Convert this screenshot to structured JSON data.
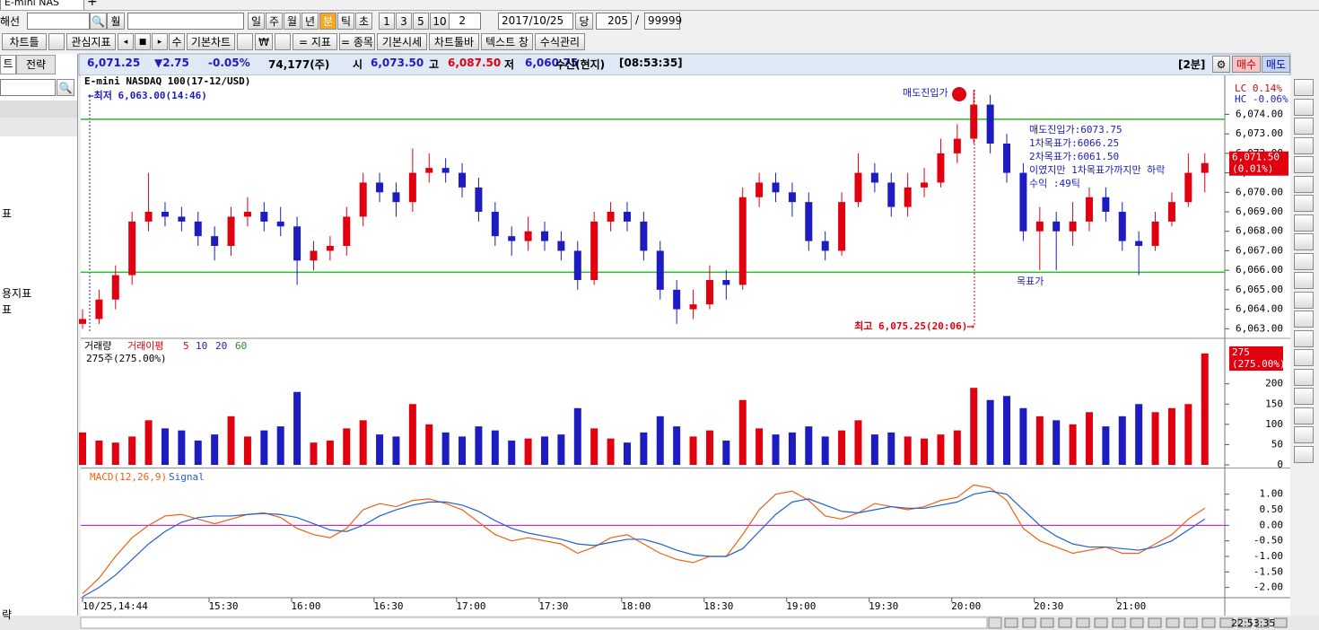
{
  "ui": {
    "tab": "E-mini NAS",
    "toolbar1": {
      "market": "해선",
      "periods": [
        "일",
        "주",
        "월",
        "년",
        "분",
        "틱",
        "초"
      ],
      "numbers": [
        "1",
        "3",
        "5",
        "10"
      ],
      "interval": "2",
      "date": "2017/10/25",
      "current": "당",
      "count": "205",
      "slash": "/",
      "max": "99999"
    },
    "toolbar2": [
      "차트틀",
      "관심지표",
      "수",
      "기본차트",
      "₩",
      "= 지표",
      "= 종목",
      "기본시세",
      "차트툴바",
      "텍스트 창",
      "수식관리"
    ],
    "left": {
      "tabs": [
        "트",
        "전략"
      ],
      "items": [
        "표",
        "용지표",
        "표",
        "략"
      ]
    },
    "info": {
      "last": "6,071.25",
      "change": "▼2.75",
      "pct": "-0.05%",
      "volume": "74,177(주)",
      "open_label": "시",
      "open": "6,073.50",
      "high_label": "고",
      "high": "6,087.50",
      "low_label": "저",
      "low": "6,060.75",
      "source": "수신(현지)",
      "time": "[08:53:35]",
      "period": "[2분]",
      "buy": "매수",
      "sell": "매도"
    },
    "clock": "22:53:35"
  },
  "chart_data": [
    {
      "type": "candlestick",
      "title": "E-mini NASDAQ 100(17-12/USD)",
      "low_note": "←최저 6,063.00(14:46)",
      "high_note": "최고 6,075.25(20:06)⟶",
      "entry_label": "매도진입가",
      "target_label": "목표가",
      "notes": [
        "매도진입가:6073.75",
        "1차목표가:6066.25",
        "2차목표가:6061.50",
        "이였지만 1차목표가까지만 하락",
        "수익 :49틱"
      ],
      "lc": "LC  0.14%",
      "hc": "HC -0.06%",
      "price_label": "6,071.50",
      "price_pct": "(0.01%)",
      "up_color": "#e00010",
      "down_color": "#1c1cc0",
      "level_color": "#2db82d",
      "levels": [
        6073.75,
        6065.9
      ],
      "xlim": [
        0,
        206
      ],
      "ylim": [
        6062.6,
        6076.0
      ],
      "yticks": [
        {
          "value": 6063,
          "label": "6,063.00"
        },
        {
          "value": 6064,
          "label": "6,064.00"
        },
        {
          "value": 6065,
          "label": "6,065.00"
        },
        {
          "value": 6066,
          "label": "6,066.00"
        },
        {
          "value": 6067,
          "label": "6,067.00"
        },
        {
          "value": 6068,
          "label": "6,068.00"
        },
        {
          "value": 6069,
          "label": "6,069.00"
        },
        {
          "value": 6070,
          "label": "6,070.00"
        },
        {
          "value": 6071,
          "label": "6,071.00"
        },
        {
          "value": 6072,
          "label": "6,072.00"
        },
        {
          "value": 6073,
          "label": "6,073.00"
        },
        {
          "value": 6074,
          "label": "6,074.00"
        }
      ],
      "x": [
        0,
        3,
        6,
        9,
        12,
        15,
        18,
        21,
        24,
        27,
        30,
        33,
        36,
        39,
        42,
        45,
        48,
        51,
        54,
        57,
        60,
        63,
        66,
        69,
        72,
        75,
        78,
        81,
        84,
        87,
        90,
        93,
        96,
        99,
        102,
        105,
        108,
        111,
        114,
        117,
        120,
        123,
        126,
        129,
        132,
        135,
        138,
        141,
        144,
        147,
        150,
        153,
        156,
        159,
        162,
        165,
        168,
        171,
        174,
        177,
        180,
        183,
        186,
        189,
        192,
        195,
        198,
        201,
        204
      ],
      "open": [
        6063.25,
        6063.5,
        6064.5,
        6065.75,
        6068.5,
        6069.0,
        6068.75,
        6068.5,
        6067.75,
        6067.25,
        6068.75,
        6069.0,
        6068.5,
        6068.25,
        6066.5,
        6067.0,
        6067.25,
        6068.75,
        6070.5,
        6070.0,
        6069.5,
        6071.0,
        6071.25,
        6071.0,
        6070.25,
        6069.0,
        6067.75,
        6067.5,
        6068.0,
        6067.5,
        6067.0,
        6065.5,
        6068.5,
        6069.0,
        6068.5,
        6067.0,
        6065.0,
        6064.0,
        6064.25,
        6065.5,
        6065.25,
        6069.75,
        6070.5,
        6070.0,
        6069.5,
        6067.5,
        6067.0,
        6069.5,
        6071.0,
        6070.5,
        6069.25,
        6070.25,
        6070.5,
        6072.0,
        6072.75,
        6074.5,
        6072.5,
        6071.0,
        6068.0,
        6068.5,
        6068.0,
        6068.5,
        6069.75,
        6069.0,
        6067.5,
        6067.25,
        6068.5,
        6069.5,
        6071.0
      ],
      "high": [
        6064.0,
        6065.0,
        6066.25,
        6069.0,
        6071.0,
        6069.5,
        6069.25,
        6069.0,
        6068.25,
        6069.25,
        6069.75,
        6069.5,
        6069.25,
        6068.75,
        6067.5,
        6067.75,
        6069.25,
        6071.0,
        6071.0,
        6070.5,
        6072.25,
        6072.0,
        6071.75,
        6071.5,
        6070.75,
        6069.5,
        6068.25,
        6068.75,
        6068.5,
        6068.0,
        6067.5,
        6069.0,
        6069.5,
        6069.5,
        6069.0,
        6067.5,
        6065.5,
        6065.0,
        6066.25,
        6066.0,
        6070.25,
        6071.0,
        6071.0,
        6070.5,
        6070.0,
        6068.0,
        6070.0,
        6072.0,
        6071.5,
        6071.0,
        6071.0,
        6071.25,
        6072.75,
        6073.5,
        6075.25,
        6075.0,
        6073.0,
        6071.5,
        6069.25,
        6069.0,
        6069.5,
        6070.25,
        6070.25,
        6069.5,
        6068.0,
        6069.0,
        6070.0,
        6072.0,
        6072.0
      ],
      "low": [
        6063.0,
        6063.25,
        6064.0,
        6065.25,
        6068.0,
        6068.25,
        6068.0,
        6067.25,
        6066.5,
        6066.75,
        6068.25,
        6068.0,
        6067.75,
        6065.25,
        6066.0,
        6066.5,
        6066.75,
        6068.25,
        6069.5,
        6068.75,
        6069.0,
        6070.5,
        6070.5,
        6069.75,
        6068.5,
        6067.25,
        6066.75,
        6067.0,
        6067.0,
        6066.5,
        6065.0,
        6065.25,
        6068.0,
        6068.0,
        6066.5,
        6064.5,
        6063.25,
        6063.5,
        6064.0,
        6064.5,
        6065.0,
        6069.25,
        6069.5,
        6068.75,
        6067.0,
        6066.5,
        6066.75,
        6069.25,
        6070.0,
        6068.75,
        6068.75,
        6069.75,
        6070.25,
        6071.5,
        6072.5,
        6072.0,
        6070.5,
        6067.5,
        6066.0,
        6066.0,
        6067.25,
        6068.0,
        6068.5,
        6067.0,
        6065.75,
        6067.0,
        6068.25,
        6069.25,
        6070.0
      ],
      "close": [
        6063.5,
        6064.5,
        6065.75,
        6068.5,
        6069.0,
        6068.75,
        6068.5,
        6067.75,
        6067.25,
        6068.75,
        6069.0,
        6068.5,
        6068.25,
        6066.5,
        6067.0,
        6067.25,
        6068.75,
        6070.5,
        6070.0,
        6069.5,
        6071.0,
        6071.25,
        6071.0,
        6070.25,
        6069.0,
        6067.75,
        6067.5,
        6068.0,
        6067.5,
        6067.0,
        6065.5,
        6068.5,
        6069.0,
        6068.5,
        6067.0,
        6065.0,
        6064.0,
        6064.25,
        6065.5,
        6065.25,
        6069.75,
        6070.5,
        6070.0,
        6069.5,
        6067.5,
        6067.0,
        6069.5,
        6071.0,
        6070.5,
        6069.25,
        6070.25,
        6070.5,
        6072.0,
        6072.75,
        6074.5,
        6072.5,
        6071.0,
        6068.0,
        6068.5,
        6068.0,
        6068.5,
        6069.75,
        6069.0,
        6067.5,
        6067.25,
        6068.5,
        6069.5,
        6071.0,
        6071.5
      ]
    },
    {
      "type": "bar",
      "legend": [
        "거래량",
        "거래이평",
        "5",
        "10",
        "20",
        "60"
      ],
      "legend_colors": [
        "#000000",
        "#e00010",
        "#e00010",
        "#1c1cc0",
        "#1c1cc0",
        "#2a8a2a"
      ],
      "subtitle": "275주(275.00%)",
      "last_label": "275",
      "last_pct": "(275.00%)",
      "ylim": [
        0,
        310
      ],
      "yticks": [
        0,
        50,
        100,
        150,
        200
      ],
      "values": [
        80,
        60,
        55,
        70,
        110,
        90,
        85,
        60,
        75,
        120,
        70,
        85,
        95,
        180,
        55,
        60,
        90,
        110,
        75,
        70,
        150,
        100,
        80,
        70,
        95,
        85,
        60,
        65,
        70,
        75,
        140,
        90,
        65,
        55,
        80,
        120,
        95,
        70,
        85,
        60,
        160,
        90,
        75,
        80,
        95,
        70,
        85,
        110,
        75,
        80,
        70,
        65,
        75,
        85,
        190,
        160,
        170,
        140,
        120,
        110,
        100,
        130,
        95,
        120,
        150,
        130,
        140,
        150,
        275
      ]
    },
    {
      "type": "line",
      "ylim": [
        -2.3,
        1.8
      ],
      "zero_color": "#d000d0",
      "hline": 0,
      "yticks": [
        {
          "value": 1,
          "label": "1.00"
        },
        {
          "value": 0.5,
          "label": "0.50"
        },
        {
          "value": 0,
          "label": "0.00"
        },
        {
          "value": -0.5,
          "label": "-0.50"
        },
        {
          "value": -1,
          "label": "-1.00"
        },
        {
          "value": -1.5,
          "label": "-1.50"
        },
        {
          "value": -2,
          "label": "-2.00"
        }
      ],
      "xticks": [
        {
          "value": 0,
          "label": "10/25,14:44"
        },
        {
          "value": 23,
          "label": "15:30"
        },
        {
          "value": 38,
          "label": "16:00"
        },
        {
          "value": 53,
          "label": "16:30"
        },
        {
          "value": 68,
          "label": "17:00"
        },
        {
          "value": 83,
          "label": "17:30"
        },
        {
          "value": 98,
          "label": "18:00"
        },
        {
          "value": 113,
          "label": "18:30"
        },
        {
          "value": 128,
          "label": "19:00"
        },
        {
          "value": 143,
          "label": "19:30"
        },
        {
          "value": 158,
          "label": "20:00"
        },
        {
          "value": 173,
          "label": "20:30"
        },
        {
          "value": 188,
          "label": "21:00"
        }
      ],
      "series": [
        {
          "name": "MACD(12,26,9)",
          "color": "#f06010",
          "values": [
            -2.2,
            -1.7,
            -1.0,
            -0.4,
            0.0,
            0.3,
            0.35,
            0.2,
            0.05,
            0.2,
            0.35,
            0.4,
            0.25,
            -0.1,
            -0.3,
            -0.4,
            -0.1,
            0.5,
            0.7,
            0.6,
            0.8,
            0.85,
            0.7,
            0.5,
            0.1,
            -0.3,
            -0.5,
            -0.4,
            -0.5,
            -0.6,
            -0.9,
            -0.7,
            -0.4,
            -0.3,
            -0.6,
            -0.9,
            -1.1,
            -1.2,
            -1.0,
            -1.0,
            -0.3,
            0.5,
            1.0,
            1.1,
            0.8,
            0.3,
            0.2,
            0.4,
            0.7,
            0.6,
            0.5,
            0.6,
            0.8,
            0.9,
            1.3,
            1.2,
            0.8,
            -0.1,
            -0.5,
            -0.7,
            -0.9,
            -0.8,
            -0.7,
            -0.9,
            -0.9,
            -0.6,
            -0.3,
            0.2,
            0.55
          ]
        },
        {
          "name": "Signal",
          "color": "#2060d0",
          "values": [
            -2.3,
            -2.0,
            -1.6,
            -1.1,
            -0.6,
            -0.2,
            0.1,
            0.25,
            0.3,
            0.3,
            0.35,
            0.38,
            0.35,
            0.25,
            0.05,
            -0.15,
            -0.2,
            0.0,
            0.3,
            0.5,
            0.65,
            0.75,
            0.75,
            0.65,
            0.45,
            0.15,
            -0.1,
            -0.25,
            -0.35,
            -0.45,
            -0.6,
            -0.65,
            -0.55,
            -0.45,
            -0.45,
            -0.6,
            -0.8,
            -0.95,
            -1.0,
            -1.0,
            -0.75,
            -0.2,
            0.35,
            0.75,
            0.85,
            0.65,
            0.45,
            0.4,
            0.5,
            0.6,
            0.55,
            0.55,
            0.65,
            0.75,
            1.0,
            1.1,
            1.0,
            0.5,
            0.0,
            -0.35,
            -0.6,
            -0.7,
            -0.7,
            -0.75,
            -0.8,
            -0.7,
            -0.5,
            -0.15,
            0.2
          ]
        }
      ]
    }
  ]
}
